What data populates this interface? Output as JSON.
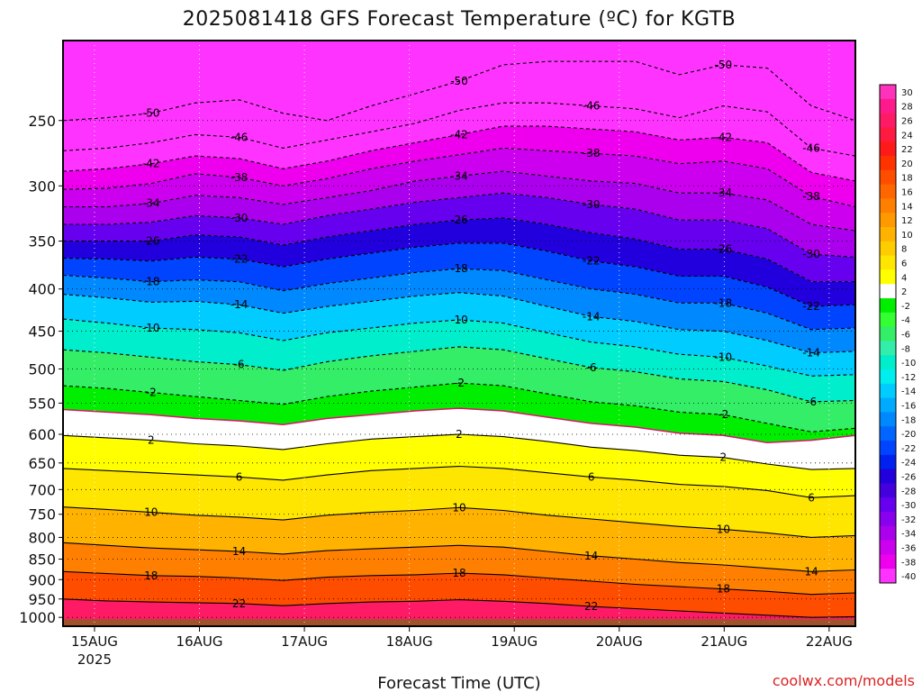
{
  "chart_data": {
    "type": "heatmap",
    "title": "2025081418 GFS Forecast Temperature (ºC) for KGTB",
    "xlabel": "Forecast Time (UTC)",
    "source": "coolwx.com/models",
    "x_ticks": [
      {
        "label": "15AUG",
        "sub": "2025",
        "day": 0
      },
      {
        "label": "16AUG",
        "day": 1
      },
      {
        "label": "17AUG",
        "day": 2
      },
      {
        "label": "18AUG",
        "day": 3
      },
      {
        "label": "19AUG",
        "day": 4
      },
      {
        "label": "20AUG",
        "day": 5
      },
      {
        "label": "21AUG",
        "day": 6
      },
      {
        "label": "22AUG",
        "day": 7
      }
    ],
    "xlim": [
      -0.3,
      7.25
    ],
    "y_ticks": [
      250,
      300,
      350,
      400,
      450,
      500,
      550,
      600,
      650,
      700,
      750,
      800,
      850,
      900,
      950,
      1000
    ],
    "y_tick_labels": [
      "250",
      "300",
      "350",
      "400",
      "450",
      "500",
      "550",
      "600",
      "650",
      "700",
      "750",
      "800",
      "850",
      "900",
      "950",
      "1000"
    ],
    "ylim": [
      1025,
      200
    ],
    "surface_pressure": 1005,
    "colorbar": {
      "labels": [
        "30",
        "28",
        "26",
        "24",
        "22",
        "20",
        "18",
        "16",
        "14",
        "12",
        "10",
        "8",
        "6",
        "4",
        "2",
        "-2",
        "-4",
        "-6",
        "-8",
        "-10",
        "-12",
        "-14",
        "-16",
        "-18",
        "-20",
        "-22",
        "-24",
        "-26",
        "-28",
        "-30",
        "-32",
        "-34",
        "-36",
        "-38",
        "-40"
      ],
      "colors": [
        "#ff33bb",
        "#ff1a8c",
        "#ff1a66",
        "#ff1a40",
        "#ff1a1a",
        "#ff3300",
        "#ff4d00",
        "#ff6600",
        "#ff8000",
        "#ff9900",
        "#ffb300",
        "#ffcc00",
        "#ffe600",
        "#ffff00",
        "#ffffff",
        "#00ee00",
        "#33ff33",
        "#33ee66",
        "#33eeaa",
        "#00eecc",
        "#00eeee",
        "#00ccff",
        "#00aaff",
        "#0088ff",
        "#0066ff",
        "#0044ff",
        "#0022ee",
        "#2200dd",
        "#4400dd",
        "#6600ee",
        "#8800ee",
        "#aa00ee",
        "#cc00ee",
        "#ee00ee",
        "#ff33ff"
      ]
    },
    "series": [
      {
        "name": "-50",
        "values": [
          250,
          248,
          245,
          238,
          236,
          245,
          250,
          240,
          232,
          224,
          214,
          212,
          212,
          212,
          220,
          214,
          216,
          240,
          250
        ]
      },
      {
        "name": "-46",
        "values": [
          272,
          270,
          266,
          260,
          262,
          270,
          264,
          258,
          252,
          243,
          238,
          238,
          240,
          242,
          248,
          240,
          244,
          270,
          276
        ]
      },
      {
        "name": "-42",
        "values": [
          288,
          286,
          282,
          276,
          278,
          286,
          280,
          272,
          266,
          260,
          254,
          254,
          256,
          258,
          264,
          262,
          266,
          289,
          296
        ]
      },
      {
        "name": "-38",
        "values": [
          303,
          302,
          298,
          290,
          293,
          300,
          294,
          286,
          280,
          275,
          270,
          272,
          274,
          276,
          282,
          280,
          286,
          309,
          318
        ]
      },
      {
        "name": "-34",
        "values": [
          318,
          318,
          315,
          308,
          310,
          316,
          310,
          304,
          296,
          292,
          288,
          292,
          296,
          298,
          306,
          306,
          312,
          334,
          340
        ]
      },
      {
        "name": "-30",
        "values": [
          334,
          334,
          332,
          326,
          328,
          334,
          326,
          320,
          314,
          310,
          306,
          310,
          316,
          320,
          330,
          330,
          338,
          363,
          366
        ]
      },
      {
        "name": "-26",
        "values": [
          350,
          350,
          350,
          344,
          346,
          354,
          346,
          340,
          334,
          330,
          328,
          334,
          342,
          348,
          358,
          358,
          368,
          392,
          392
        ]
      },
      {
        "name": "-22",
        "values": [
          367,
          368,
          370,
          366,
          368,
          376,
          368,
          362,
          356,
          352,
          352,
          360,
          370,
          376,
          386,
          386,
          398,
          420,
          418
        ]
      },
      {
        "name": "-18",
        "values": [
          385,
          388,
          392,
          390,
          392,
          402,
          394,
          388,
          382,
          378,
          380,
          390,
          400,
          406,
          416,
          416,
          428,
          448,
          446
        ]
      },
      {
        "name": "-14",
        "values": [
          406,
          410,
          415,
          414,
          418,
          428,
          420,
          414,
          408,
          404,
          408,
          420,
          432,
          438,
          448,
          450,
          462,
          478,
          476
        ]
      },
      {
        "name": "-10",
        "values": [
          435,
          440,
          446,
          448,
          452,
          462,
          452,
          446,
          440,
          436,
          440,
          452,
          464,
          470,
          480,
          484,
          496,
          510,
          508
        ]
      },
      {
        "name": "-6",
        "values": [
          474,
          478,
          484,
          490,
          494,
          502,
          490,
          482,
          476,
          470,
          474,
          486,
          498,
          504,
          514,
          518,
          530,
          548,
          546
        ]
      },
      {
        "name": "-2",
        "values": [
          524,
          528,
          534,
          540,
          546,
          552,
          540,
          532,
          526,
          520,
          524,
          536,
          548,
          554,
          564,
          568,
          582,
          596,
          590
        ]
      },
      {
        "name": "2_up",
        "values": [
          560,
          564,
          568,
          574,
          578,
          584,
          574,
          568,
          562,
          558,
          562,
          572,
          582,
          588,
          598,
          602,
          614,
          610,
          602
        ]
      },
      {
        "name": "2",
        "values": [
          602,
          606,
          610,
          616,
          620,
          626,
          616,
          608,
          604,
          600,
          604,
          612,
          622,
          628,
          636,
          640,
          652,
          662,
          660
        ]
      },
      {
        "name": "6",
        "values": [
          660,
          664,
          668,
          672,
          676,
          682,
          672,
          664,
          660,
          656,
          660,
          668,
          676,
          682,
          690,
          694,
          702,
          716,
          712
        ]
      },
      {
        "name": "10",
        "values": [
          735,
          740,
          746,
          752,
          756,
          762,
          752,
          746,
          742,
          736,
          742,
          752,
          760,
          768,
          776,
          782,
          790,
          800,
          796
        ]
      },
      {
        "name": "14",
        "values": [
          812,
          818,
          824,
          828,
          832,
          838,
          830,
          826,
          822,
          818,
          822,
          832,
          842,
          850,
          858,
          864,
          872,
          880,
          876
        ]
      },
      {
        "name": "18",
        "values": [
          880,
          885,
          890,
          892,
          896,
          902,
          894,
          890,
          888,
          884,
          888,
          896,
          904,
          912,
          918,
          924,
          930,
          938,
          934
        ]
      },
      {
        "name": "22",
        "values": [
          950,
          955,
          958,
          960,
          962,
          968,
          962,
          958,
          956,
          952,
          956,
          962,
          970,
          976,
          982,
          988,
          994,
          1000,
          998
        ]
      }
    ],
    "grid": "dotted"
  }
}
